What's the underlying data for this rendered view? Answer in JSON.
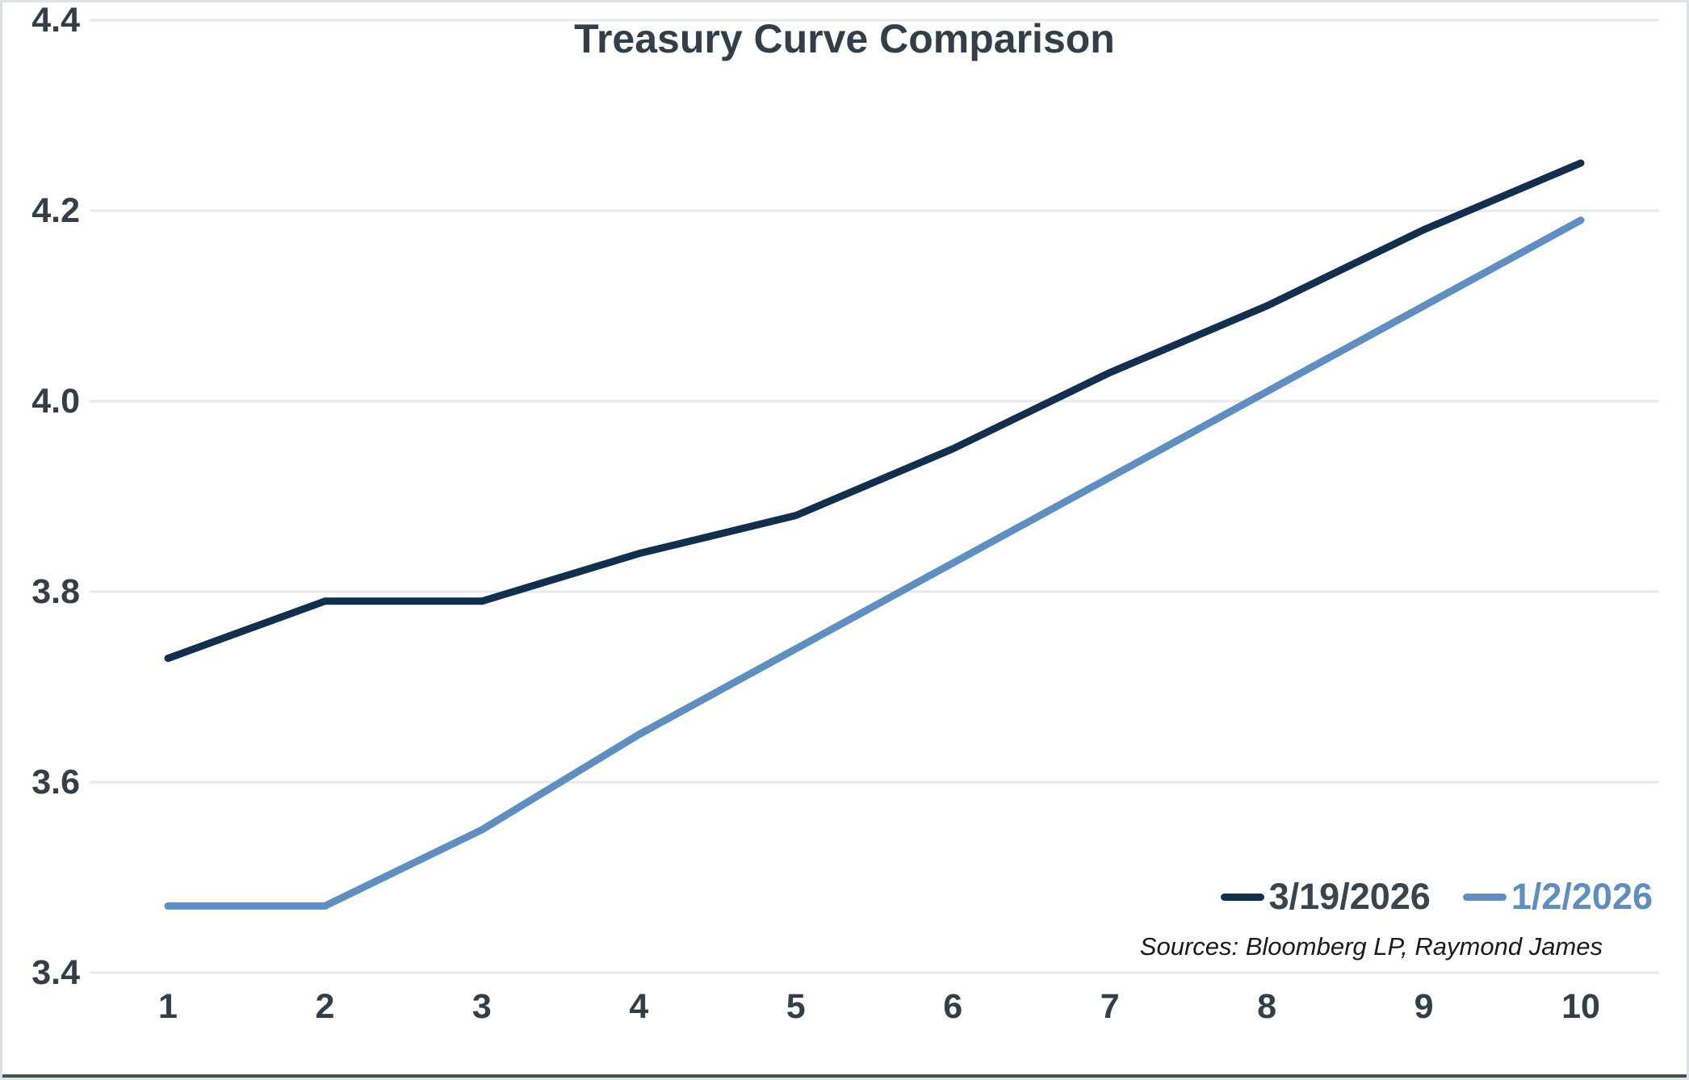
{
  "chart_data": {
    "type": "line",
    "title": "Treasury Curve Comparison",
    "x": [
      1,
      2,
      3,
      4,
      5,
      6,
      7,
      8,
      9,
      10
    ],
    "series": [
      {
        "name": "3/19/2026",
        "color": "#122f4d",
        "legend_text_color": "#3a444c",
        "values": [
          3.73,
          3.79,
          3.79,
          3.84,
          3.88,
          3.95,
          4.03,
          4.1,
          4.18,
          4.25
        ]
      },
      {
        "name": "1/2/2026",
        "color": "#5e8fc0",
        "legend_text_color": "#5e8fc0",
        "values": [
          3.47,
          3.47,
          3.55,
          3.65,
          3.74,
          3.83,
          3.92,
          4.01,
          4.1,
          4.19
        ]
      }
    ],
    "ylim": [
      3.4,
      4.4
    ],
    "y_ticks": [
      3.4,
      3.6,
      3.8,
      4.0,
      4.2,
      4.4
    ],
    "grid": "horizontal",
    "legend_position": "inside-bottom-right",
    "source_note": "Sources: Bloomberg LP, Raymond James"
  },
  "styles": {
    "title_color": "#333f48",
    "tick_color": "#333f48",
    "grid_color": "#e4e9ec",
    "frame_border_color": "#dbe1e4",
    "bottom_bar_color": "#3f5649",
    "background": "#ffffff"
  }
}
